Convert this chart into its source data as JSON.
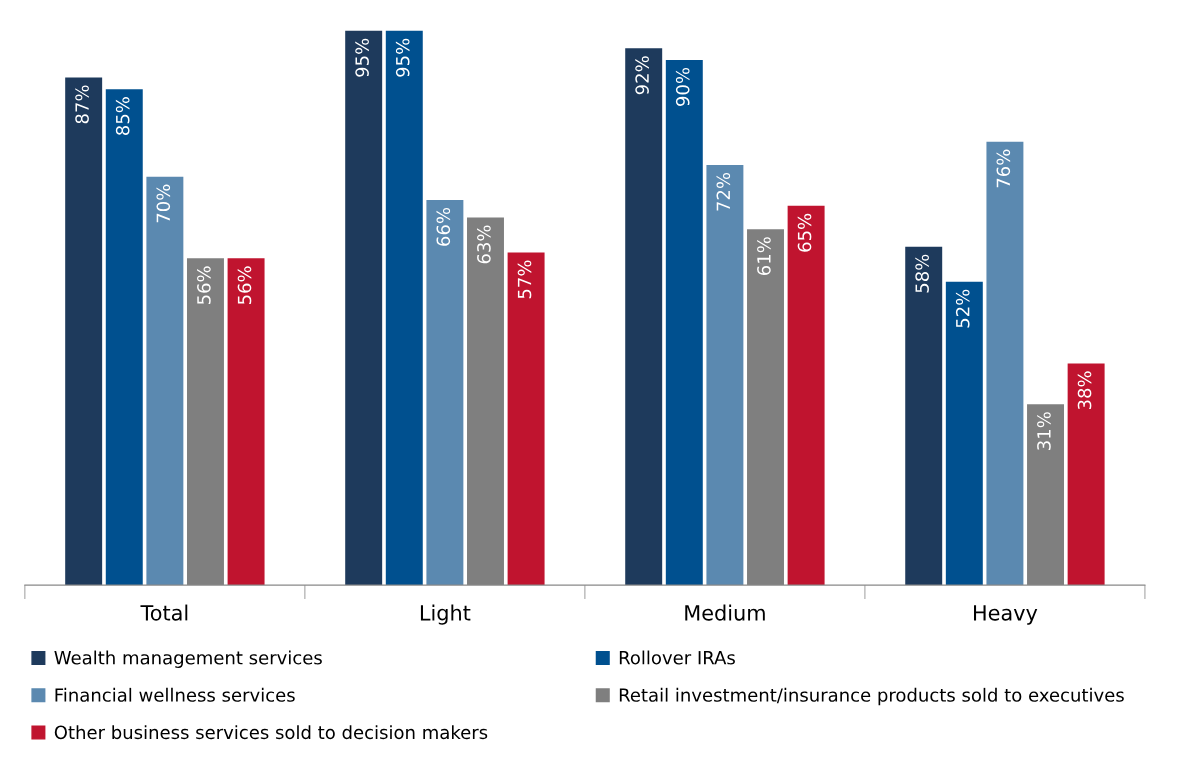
{
  "chart_data": {
    "type": "bar",
    "categories": [
      "Total",
      "Light",
      "Medium",
      "Heavy"
    ],
    "series": [
      {
        "name": "Wealth management services",
        "color": "#1e3a5c",
        "values": [
          87,
          95,
          92,
          58
        ],
        "value_labels": [
          "87%",
          "95%",
          "92%",
          "58%"
        ]
      },
      {
        "name": "Rollover IRAs",
        "color": "#00508f",
        "values": [
          85,
          95,
          90,
          52
        ],
        "value_labels": [
          "85%",
          "95%",
          "90%",
          "52%"
        ]
      },
      {
        "name": "Financial wellness services",
        "color": "#5b89b0",
        "values": [
          70,
          66,
          72,
          76
        ],
        "value_labels": [
          "70%",
          "66%",
          "72%",
          "76%"
        ]
      },
      {
        "name": "Retail investment/insurance products sold to executives",
        "color": "#7f7f7f",
        "values": [
          56,
          63,
          61,
          31
        ],
        "value_labels": [
          "56%",
          "63%",
          "61%",
          "31%"
        ]
      },
      {
        "name": "Other business services sold to decision makers",
        "color": "#c0142f",
        "values": [
          56,
          57,
          65,
          38
        ],
        "value_labels": [
          "56%",
          "57%",
          "65%",
          "38%"
        ]
      }
    ],
    "tick_labels": "x",
    "grid": false,
    "legend": "bottom"
  }
}
